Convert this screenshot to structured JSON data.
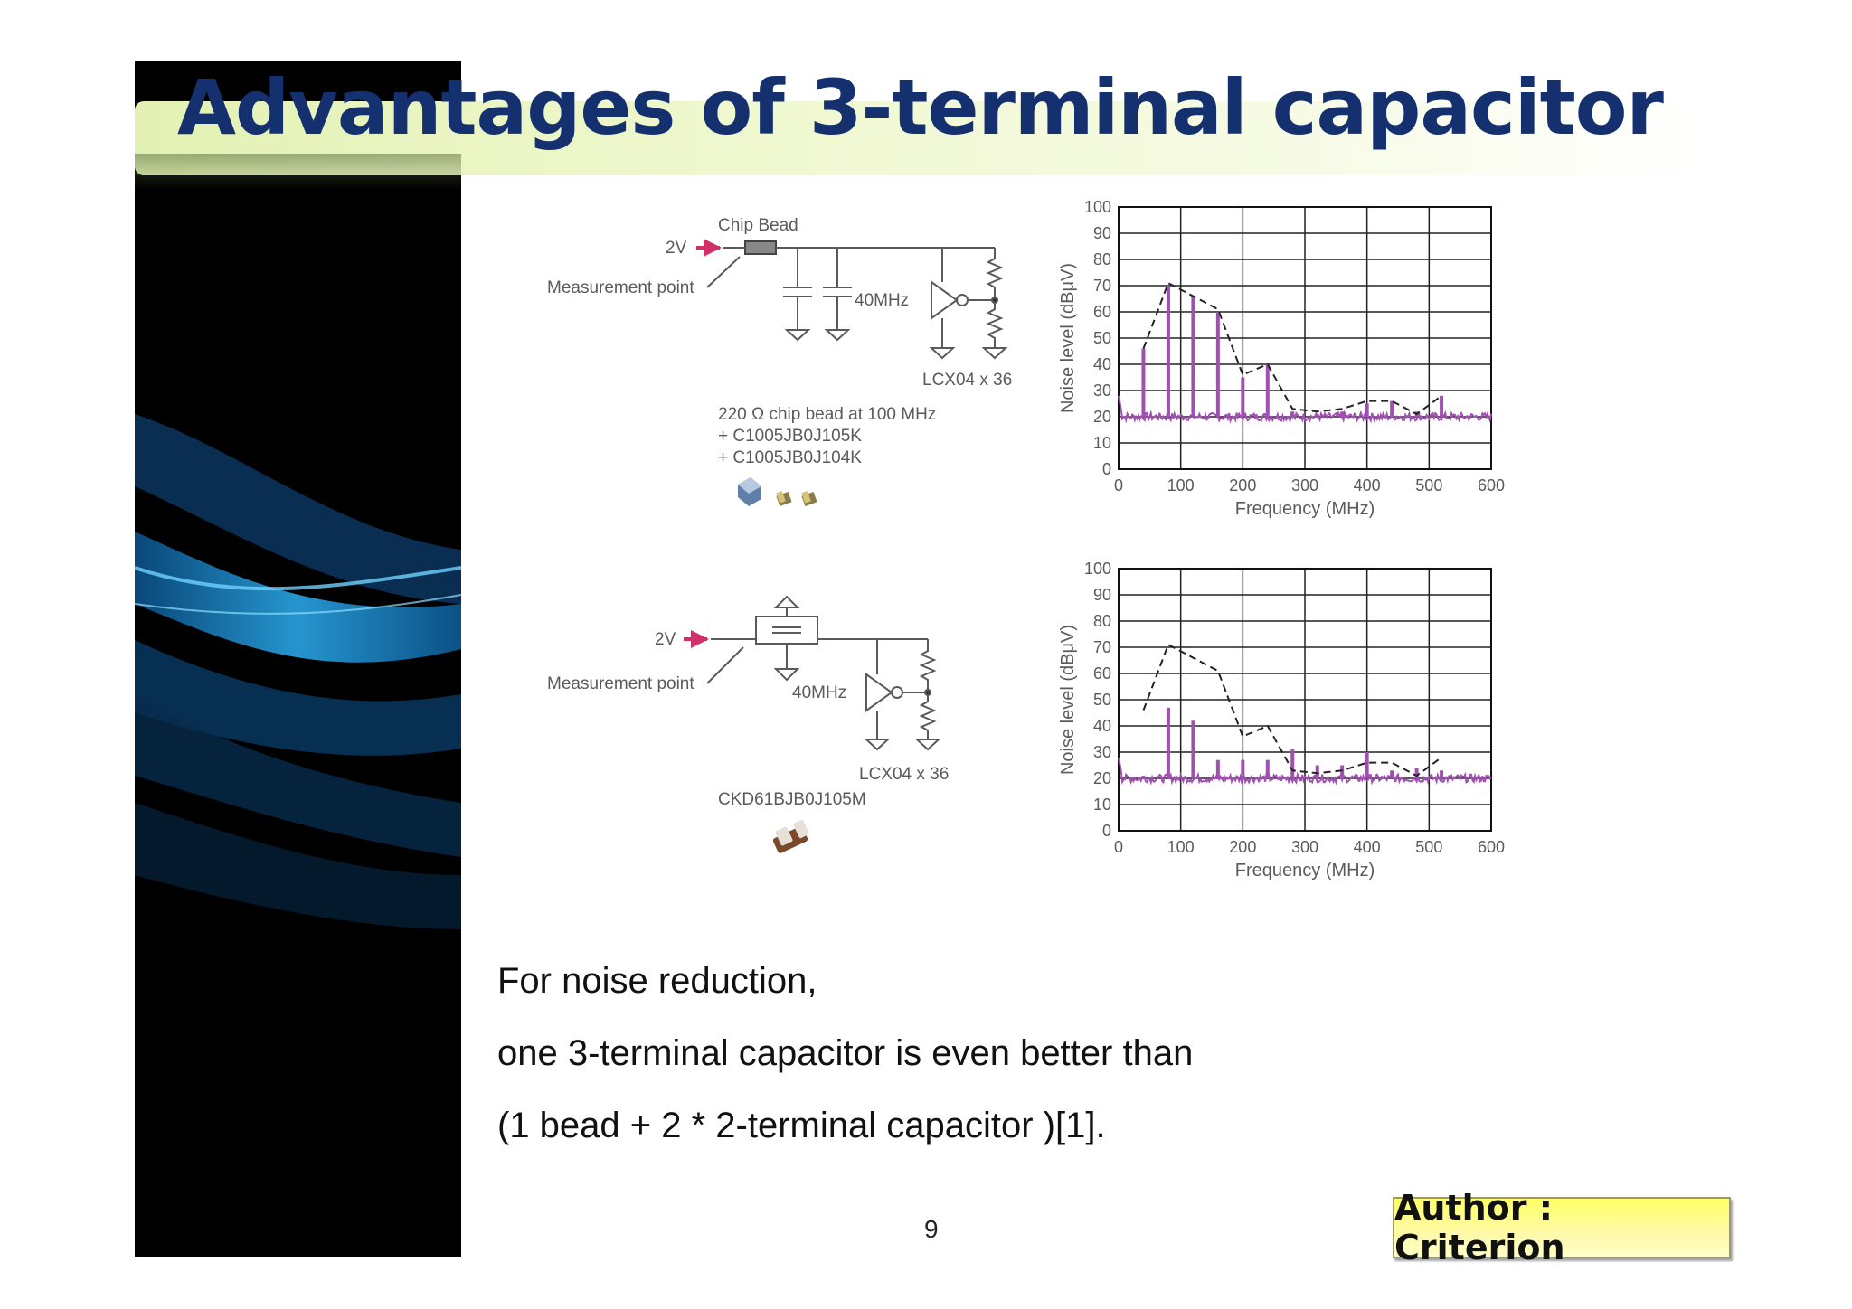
{
  "slide": {
    "title": "Advantages of 3-terminal capacitor",
    "page_number": "9",
    "author_label": "Author : Criterion",
    "body_lines": [
      "For noise reduction,",
      "one 3-terminal capacitor is even better than",
      "(1 bead + 2 * 2-terminal capacitor )[1]."
    ],
    "colors": {
      "title": "#14306e",
      "sidebar": "#000000",
      "noise_trace": "#a050b0",
      "author_box": "#ffff80"
    }
  },
  "circuit_top": {
    "bead_label": "Chip Bead",
    "voltage": "2V",
    "measurement": "Measurement point",
    "freq": "40MHz",
    "ic": "LCX04 x 36",
    "parts": [
      "220 Ω chip bead at 100 MHz",
      "+ C1005JB0J105K",
      "+ C1005JB0J104K"
    ]
  },
  "circuit_bottom": {
    "voltage": "2V",
    "measurement": "Measurement point",
    "freq": "40MHz",
    "ic": "LCX04 x 36",
    "part": "CKD61BJB0J105M"
  },
  "chart_data": [
    {
      "type": "line",
      "xlabel": "Frequency (MHz)",
      "ylabel": "Noise level (dBμV)",
      "xlim": [
        0,
        600
      ],
      "ylim": [
        0,
        100
      ],
      "xticks": [
        "0",
        "100",
        "200",
        "300",
        "400",
        "500",
        "600"
      ],
      "yticks": [
        "0",
        "10",
        "20",
        "30",
        "40",
        "50",
        "60",
        "70",
        "80",
        "90",
        "100"
      ],
      "noise_floor": 20,
      "spikes": [
        [
          40,
          46
        ],
        [
          80,
          70
        ],
        [
          120,
          66
        ],
        [
          160,
          60
        ],
        [
          200,
          35
        ],
        [
          240,
          40
        ],
        [
          280,
          22
        ],
        [
          320,
          21
        ],
        [
          360,
          22
        ],
        [
          400,
          25
        ],
        [
          440,
          26
        ],
        [
          480,
          22
        ],
        [
          520,
          28
        ]
      ],
      "limit_line": [
        [
          40,
          46
        ],
        [
          80,
          71
        ],
        [
          160,
          61
        ],
        [
          200,
          36
        ],
        [
          240,
          40
        ],
        [
          280,
          23
        ],
        [
          320,
          22
        ],
        [
          360,
          23
        ],
        [
          400,
          26
        ],
        [
          440,
          26
        ],
        [
          480,
          21
        ],
        [
          520,
          28
        ]
      ]
    },
    {
      "type": "line",
      "xlabel": "Frequency (MHz)",
      "ylabel": "Noise level (dBμV)",
      "xlim": [
        0,
        600
      ],
      "ylim": [
        0,
        100
      ],
      "xticks": [
        "0",
        "100",
        "200",
        "300",
        "400",
        "500",
        "600"
      ],
      "yticks": [
        "0",
        "10",
        "20",
        "30",
        "40",
        "50",
        "60",
        "70",
        "80",
        "90",
        "100"
      ],
      "noise_floor": 20,
      "spikes": [
        [
          40,
          21
        ],
        [
          80,
          47
        ],
        [
          120,
          42
        ],
        [
          160,
          27
        ],
        [
          200,
          27
        ],
        [
          240,
          27
        ],
        [
          280,
          31
        ],
        [
          320,
          25
        ],
        [
          360,
          25
        ],
        [
          400,
          30
        ],
        [
          440,
          23
        ],
        [
          480,
          24
        ],
        [
          520,
          23
        ]
      ],
      "limit_line": [
        [
          40,
          46
        ],
        [
          80,
          71
        ],
        [
          160,
          61
        ],
        [
          200,
          36
        ],
        [
          240,
          40
        ],
        [
          280,
          23
        ],
        [
          320,
          22
        ],
        [
          360,
          23
        ],
        [
          400,
          26
        ],
        [
          440,
          26
        ],
        [
          480,
          21
        ],
        [
          520,
          28
        ]
      ]
    }
  ]
}
